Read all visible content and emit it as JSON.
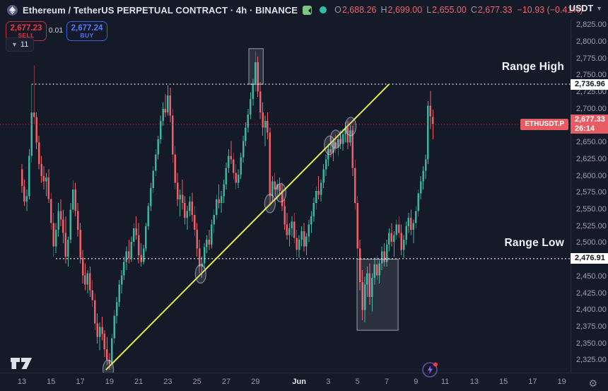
{
  "header": {
    "symbol_title": "Ethereum / TetherUS PERPETUAL CONTRACT · 4h · BINANCE",
    "ohlc": {
      "o_label": "O",
      "o": "2,688.26",
      "h_label": "H",
      "h": "2,699.00",
      "l_label": "L",
      "l": "2,655.00",
      "c_label": "C",
      "c": "2,677.33",
      "change": "−10.93 (−0.41%)"
    },
    "currency_selector": "USDT"
  },
  "trade_panel": {
    "sell_price": "2,677.23",
    "sell_label": "SELL",
    "spread": "0.01",
    "buy_price": "2,677.24",
    "buy_label": "BUY",
    "drawings_count": "11"
  },
  "chart_data": {
    "type": "candlestick",
    "symbol": "ETHUSDT.P",
    "exchange": "BINANCE",
    "timeframe": "4h",
    "title": "Ethereum / TetherUS Perpetual Contract 4h",
    "ylim": [
      2308,
      2833
    ],
    "grid": false,
    "colors": {
      "background": "#151a28",
      "up": "#3cb4a0",
      "down": "#ee5f68",
      "trendline": "#e7e750",
      "range_line": "#e8ebf3",
      "last_price_line": "#f23645",
      "badge_red": "#e95b62"
    },
    "price_axis": {
      "ticks": [
        {
          "v": 2825,
          "l": "2,825.00"
        },
        {
          "v": 2800,
          "l": "2,800.00"
        },
        {
          "v": 2775,
          "l": "2,775.00"
        },
        {
          "v": 2750,
          "l": "2,750.00"
        },
        {
          "v": 2725,
          "l": "2,725.00"
        },
        {
          "v": 2700,
          "l": "2,700.00"
        },
        {
          "v": 2650,
          "l": "2,650.00"
        },
        {
          "v": 2625,
          "l": "2,625.00"
        },
        {
          "v": 2600,
          "l": "2,600.00"
        },
        {
          "v": 2575,
          "l": "2,575.00"
        },
        {
          "v": 2550,
          "l": "2,550.00"
        },
        {
          "v": 2525,
          "l": "2,525.00"
        },
        {
          "v": 2500,
          "l": "2,500.00"
        },
        {
          "v": 2450,
          "l": "2,450.00"
        },
        {
          "v": 2425,
          "l": "2,425.00"
        },
        {
          "v": 2400,
          "l": "2,400.00"
        },
        {
          "v": 2375,
          "l": "2,375.00"
        },
        {
          "v": 2350,
          "l": "2,350.00"
        },
        {
          "v": 2325,
          "l": "2,325.00"
        }
      ]
    },
    "time_axis": {
      "ticks": [
        {
          "d": 0,
          "l": "13"
        },
        {
          "d": 2,
          "l": "15"
        },
        {
          "d": 4,
          "l": "17"
        },
        {
          "d": 6,
          "l": "19"
        },
        {
          "d": 8,
          "l": "21"
        },
        {
          "d": 10,
          "l": "23"
        },
        {
          "d": 12,
          "l": "25"
        },
        {
          "d": 14,
          "l": "27"
        },
        {
          "d": 16,
          "l": "29"
        },
        {
          "d": 19,
          "l": "Jun",
          "major": true
        },
        {
          "d": 21,
          "l": "3"
        },
        {
          "d": 23,
          "l": "5"
        },
        {
          "d": 25,
          "l": "7"
        },
        {
          "d": 27,
          "l": "9"
        },
        {
          "d": 29,
          "l": "11"
        },
        {
          "d": 31,
          "l": "13"
        },
        {
          "d": 33,
          "l": "15"
        },
        {
          "d": 35,
          "l": "17"
        },
        {
          "d": 37,
          "l": "19"
        }
      ]
    },
    "candles": [
      [
        2610,
        2618,
        2575,
        2585
      ],
      [
        2585,
        2595,
        2555,
        2562
      ],
      [
        2562,
        2580,
        2548,
        2570
      ],
      [
        2570,
        2640,
        2565,
        2630
      ],
      [
        2630,
        2737,
        2620,
        2695
      ],
      [
        2695,
        2765,
        2678,
        2688
      ],
      [
        2688,
        2695,
        2640,
        2650
      ],
      [
        2650,
        2660,
        2610,
        2618
      ],
      [
        2618,
        2630,
        2590,
        2600
      ],
      [
        2600,
        2615,
        2580,
        2592
      ],
      [
        2592,
        2605,
        2570,
        2598
      ],
      [
        2598,
        2610,
        2560,
        2566
      ],
      [
        2566,
        2575,
        2520,
        2530
      ],
      [
        2530,
        2545,
        2480,
        2495
      ],
      [
        2495,
        2530,
        2485,
        2520
      ],
      [
        2520,
        2560,
        2510,
        2548
      ],
      [
        2548,
        2565,
        2525,
        2535
      ],
      [
        2535,
        2550,
        2500,
        2515
      ],
      [
        2515,
        2540,
        2470,
        2480
      ],
      [
        2480,
        2510,
        2465,
        2505
      ],
      [
        2505,
        2560,
        2500,
        2550
      ],
      [
        2550,
        2593,
        2545,
        2580
      ],
      [
        2580,
        2590,
        2540,
        2548
      ],
      [
        2548,
        2560,
        2510,
        2520
      ],
      [
        2520,
        2530,
        2470,
        2478
      ],
      [
        2478,
        2490,
        2440,
        2452
      ],
      [
        2452,
        2470,
        2430,
        2438
      ],
      [
        2438,
        2460,
        2425,
        2455
      ],
      [
        2455,
        2465,
        2420,
        2430
      ],
      [
        2430,
        2445,
        2405,
        2415
      ],
      [
        2415,
        2425,
        2370,
        2380
      ],
      [
        2380,
        2395,
        2350,
        2360
      ],
      [
        2360,
        2382,
        2340,
        2375
      ],
      [
        2375,
        2390,
        2355,
        2365
      ],
      [
        2365,
        2370,
        2330,
        2342
      ],
      [
        2342,
        2360,
        2318,
        2326
      ],
      [
        2326,
        2336,
        2311,
        2320
      ],
      [
        2320,
        2365,
        2312,
        2358
      ],
      [
        2358,
        2400,
        2350,
        2392
      ],
      [
        2392,
        2420,
        2380,
        2412
      ],
      [
        2412,
        2445,
        2405,
        2438
      ],
      [
        2438,
        2460,
        2425,
        2452
      ],
      [
        2452,
        2480,
        2445,
        2472
      ],
      [
        2472,
        2495,
        2460,
        2488
      ],
      [
        2488,
        2505,
        2470,
        2478
      ],
      [
        2478,
        2510,
        2472,
        2502
      ],
      [
        2502,
        2530,
        2495,
        2522
      ],
      [
        2522,
        2540,
        2505,
        2512
      ],
      [
        2512,
        2530,
        2470,
        2482
      ],
      [
        2482,
        2500,
        2465,
        2472
      ],
      [
        2472,
        2498,
        2468,
        2492
      ],
      [
        2492,
        2530,
        2488,
        2525
      ],
      [
        2525,
        2560,
        2520,
        2555
      ],
      [
        2555,
        2590,
        2548,
        2582
      ],
      [
        2582,
        2615,
        2575,
        2608
      ],
      [
        2608,
        2640,
        2600,
        2632
      ],
      [
        2632,
        2660,
        2625,
        2655
      ],
      [
        2655,
        2690,
        2648,
        2682
      ],
      [
        2682,
        2710,
        2675,
        2700
      ],
      [
        2700,
        2722,
        2688,
        2695
      ],
      [
        2695,
        2735,
        2690,
        2720
      ],
      [
        2720,
        2732,
        2680,
        2690
      ],
      [
        2690,
        2700,
        2620,
        2632
      ],
      [
        2632,
        2645,
        2580,
        2590
      ],
      [
        2590,
        2605,
        2555,
        2565
      ],
      [
        2565,
        2580,
        2540,
        2572
      ],
      [
        2572,
        2595,
        2550,
        2560
      ],
      [
        2560,
        2570,
        2528,
        2538
      ],
      [
        2538,
        2556,
        2520,
        2548
      ],
      [
        2548,
        2570,
        2540,
        2562
      ],
      [
        2562,
        2575,
        2532,
        2542
      ],
      [
        2542,
        2555,
        2510,
        2520
      ],
      [
        2520,
        2530,
        2480,
        2492
      ],
      [
        2492,
        2505,
        2455,
        2465
      ],
      [
        2465,
        2480,
        2448,
        2470
      ],
      [
        2470,
        2500,
        2462,
        2494
      ],
      [
        2494,
        2512,
        2485,
        2505
      ],
      [
        2505,
        2520,
        2490,
        2498
      ],
      [
        2498,
        2535,
        2492,
        2528
      ],
      [
        2528,
        2550,
        2515,
        2542
      ],
      [
        2542,
        2572,
        2535,
        2565
      ],
      [
        2565,
        2588,
        2552,
        2560
      ],
      [
        2560,
        2578,
        2545,
        2570
      ],
      [
        2570,
        2595,
        2560,
        2588
      ],
      [
        2588,
        2620,
        2580,
        2612
      ],
      [
        2612,
        2640,
        2605,
        2630
      ],
      [
        2630,
        2652,
        2618,
        2625
      ],
      [
        2625,
        2635,
        2595,
        2605
      ],
      [
        2605,
        2618,
        2580,
        2590
      ],
      [
        2590,
        2610,
        2582,
        2602
      ],
      [
        2602,
        2635,
        2596,
        2628
      ],
      [
        2628,
        2660,
        2620,
        2652
      ],
      [
        2652,
        2680,
        2645,
        2672
      ],
      [
        2672,
        2700,
        2665,
        2692
      ],
      [
        2692,
        2725,
        2685,
        2715
      ],
      [
        2715,
        2745,
        2705,
        2738
      ],
      [
        2738,
        2786,
        2726,
        2770
      ],
      [
        2770,
        2778,
        2718,
        2726
      ],
      [
        2726,
        2740,
        2685,
        2695
      ],
      [
        2695,
        2710,
        2660,
        2672
      ],
      [
        2672,
        2690,
        2645,
        2682
      ],
      [
        2682,
        2695,
        2655,
        2665
      ],
      [
        2665,
        2672,
        2556,
        2570
      ],
      [
        2570,
        2600,
        2562,
        2592
      ],
      [
        2592,
        2605,
        2570,
        2580
      ],
      [
        2580,
        2595,
        2565,
        2588
      ],
      [
        2588,
        2598,
        2572,
        2578
      ],
      [
        2578,
        2590,
        2548,
        2555
      ],
      [
        2555,
        2565,
        2520,
        2528
      ],
      [
        2528,
        2545,
        2505,
        2512
      ],
      [
        2512,
        2530,
        2495,
        2522
      ],
      [
        2522,
        2540,
        2510,
        2532
      ],
      [
        2532,
        2545,
        2500,
        2508
      ],
      [
        2508,
        2520,
        2480,
        2490
      ],
      [
        2490,
        2512,
        2478,
        2505
      ],
      [
        2505,
        2525,
        2495,
        2518
      ],
      [
        2518,
        2530,
        2488,
        2495
      ],
      [
        2495,
        2515,
        2482,
        2510
      ],
      [
        2510,
        2535,
        2502,
        2528
      ],
      [
        2528,
        2548,
        2515,
        2540
      ],
      [
        2540,
        2568,
        2532,
        2560
      ],
      [
        2560,
        2585,
        2550,
        2578
      ],
      [
        2578,
        2600,
        2565,
        2572
      ],
      [
        2572,
        2595,
        2562,
        2590
      ],
      [
        2590,
        2618,
        2582,
        2610
      ],
      [
        2610,
        2632,
        2600,
        2625
      ],
      [
        2625,
        2648,
        2615,
        2640
      ],
      [
        2640,
        2658,
        2628,
        2635
      ],
      [
        2635,
        2655,
        2622,
        2650
      ],
      [
        2650,
        2662,
        2635,
        2642
      ],
      [
        2642,
        2660,
        2630,
        2655
      ],
      [
        2655,
        2668,
        2640,
        2648
      ],
      [
        2648,
        2670,
        2638,
        2662
      ],
      [
        2662,
        2680,
        2650,
        2672
      ],
      [
        2672,
        2682,
        2640,
        2650
      ],
      [
        2650,
        2676,
        2645,
        2668
      ],
      [
        2668,
        2675,
        2600,
        2612
      ],
      [
        2612,
        2625,
        2550,
        2560
      ],
      [
        2560,
        2570,
        2480,
        2492
      ],
      [
        2492,
        2505,
        2430,
        2442
      ],
      [
        2442,
        2460,
        2385,
        2400
      ],
      [
        2400,
        2450,
        2382,
        2438
      ],
      [
        2438,
        2465,
        2420,
        2455
      ],
      [
        2455,
        2470,
        2408,
        2420
      ],
      [
        2420,
        2455,
        2398,
        2448
      ],
      [
        2448,
        2478,
        2438,
        2468
      ],
      [
        2468,
        2482,
        2445,
        2452
      ],
      [
        2452,
        2475,
        2440,
        2470
      ],
      [
        2470,
        2495,
        2460,
        2488
      ],
      [
        2488,
        2500,
        2465,
        2472
      ],
      [
        2472,
        2505,
        2465,
        2498
      ],
      [
        2498,
        2522,
        2488,
        2515
      ],
      [
        2515,
        2530,
        2495,
        2502
      ],
      [
        2502,
        2518,
        2480,
        2512
      ],
      [
        2512,
        2535,
        2505,
        2528
      ],
      [
        2528,
        2540,
        2508,
        2515
      ],
      [
        2515,
        2528,
        2482,
        2490
      ],
      [
        2490,
        2512,
        2478,
        2505
      ],
      [
        2505,
        2532,
        2498,
        2525
      ],
      [
        2525,
        2545,
        2515,
        2538
      ],
      [
        2538,
        2550,
        2512,
        2520
      ],
      [
        2520,
        2535,
        2500,
        2530
      ],
      [
        2530,
        2555,
        2522,
        2548
      ],
      [
        2548,
        2580,
        2540,
        2574
      ],
      [
        2574,
        2600,
        2565,
        2592
      ],
      [
        2592,
        2615,
        2580,
        2608
      ],
      [
        2608,
        2632,
        2596,
        2625
      ],
      [
        2625,
        2712,
        2618,
        2705
      ],
      [
        2705,
        2727,
        2670,
        2689
      ],
      [
        2688.26,
        2699,
        2655,
        2677.33
      ]
    ],
    "annotations": {
      "range_high": {
        "label": "Range High",
        "price": 2736.96,
        "price_label": "2,736.96",
        "start_i": 4
      },
      "range_low": {
        "label": "Range Low",
        "price": 2476.91,
        "price_label": "2,476.91",
        "start_i": 14
      },
      "last_price": {
        "value": 2677.33,
        "label": "2,677.33",
        "countdown": "26:14",
        "symbol_chip": "ETHUSDT.P"
      },
      "trendline": {
        "i1": 34.5,
        "p1": 2311,
        "i2": 151,
        "p2": 2737
      },
      "ellipses": [
        {
          "i": 35.5,
          "p": 2312
        },
        {
          "i": 73.5,
          "p": 2454
        },
        {
          "i": 102,
          "p": 2559
        },
        {
          "i": 106.4,
          "p": 2575
        },
        {
          "i": 126.5,
          "p": 2646
        },
        {
          "i": 129,
          "p": 2655
        },
        {
          "i": 135.2,
          "p": 2674
        }
      ],
      "boxes": [
        {
          "i1": 93.3,
          "i2": 99.2,
          "p1": 2790,
          "p2": 2737
        },
        {
          "i1": 137.8,
          "i2": 154.7,
          "p1": 2476,
          "p2": 2370
        }
      ]
    }
  }
}
